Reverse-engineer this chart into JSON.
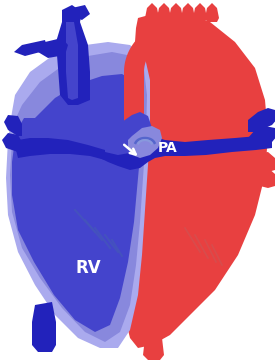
{
  "background_color": "#ffffff",
  "red": "#e84040",
  "red_dark": "#cc3030",
  "red_light": "#f08080",
  "blue_dark": "#2222bb",
  "blue_med": "#4444cc",
  "blue_light": "#8888dd",
  "blue_pale": "#aaaaee",
  "pa_label": "PA",
  "rv_label": "RV",
  "label_color": "#ffffff",
  "arrow_color": "#ffffff"
}
